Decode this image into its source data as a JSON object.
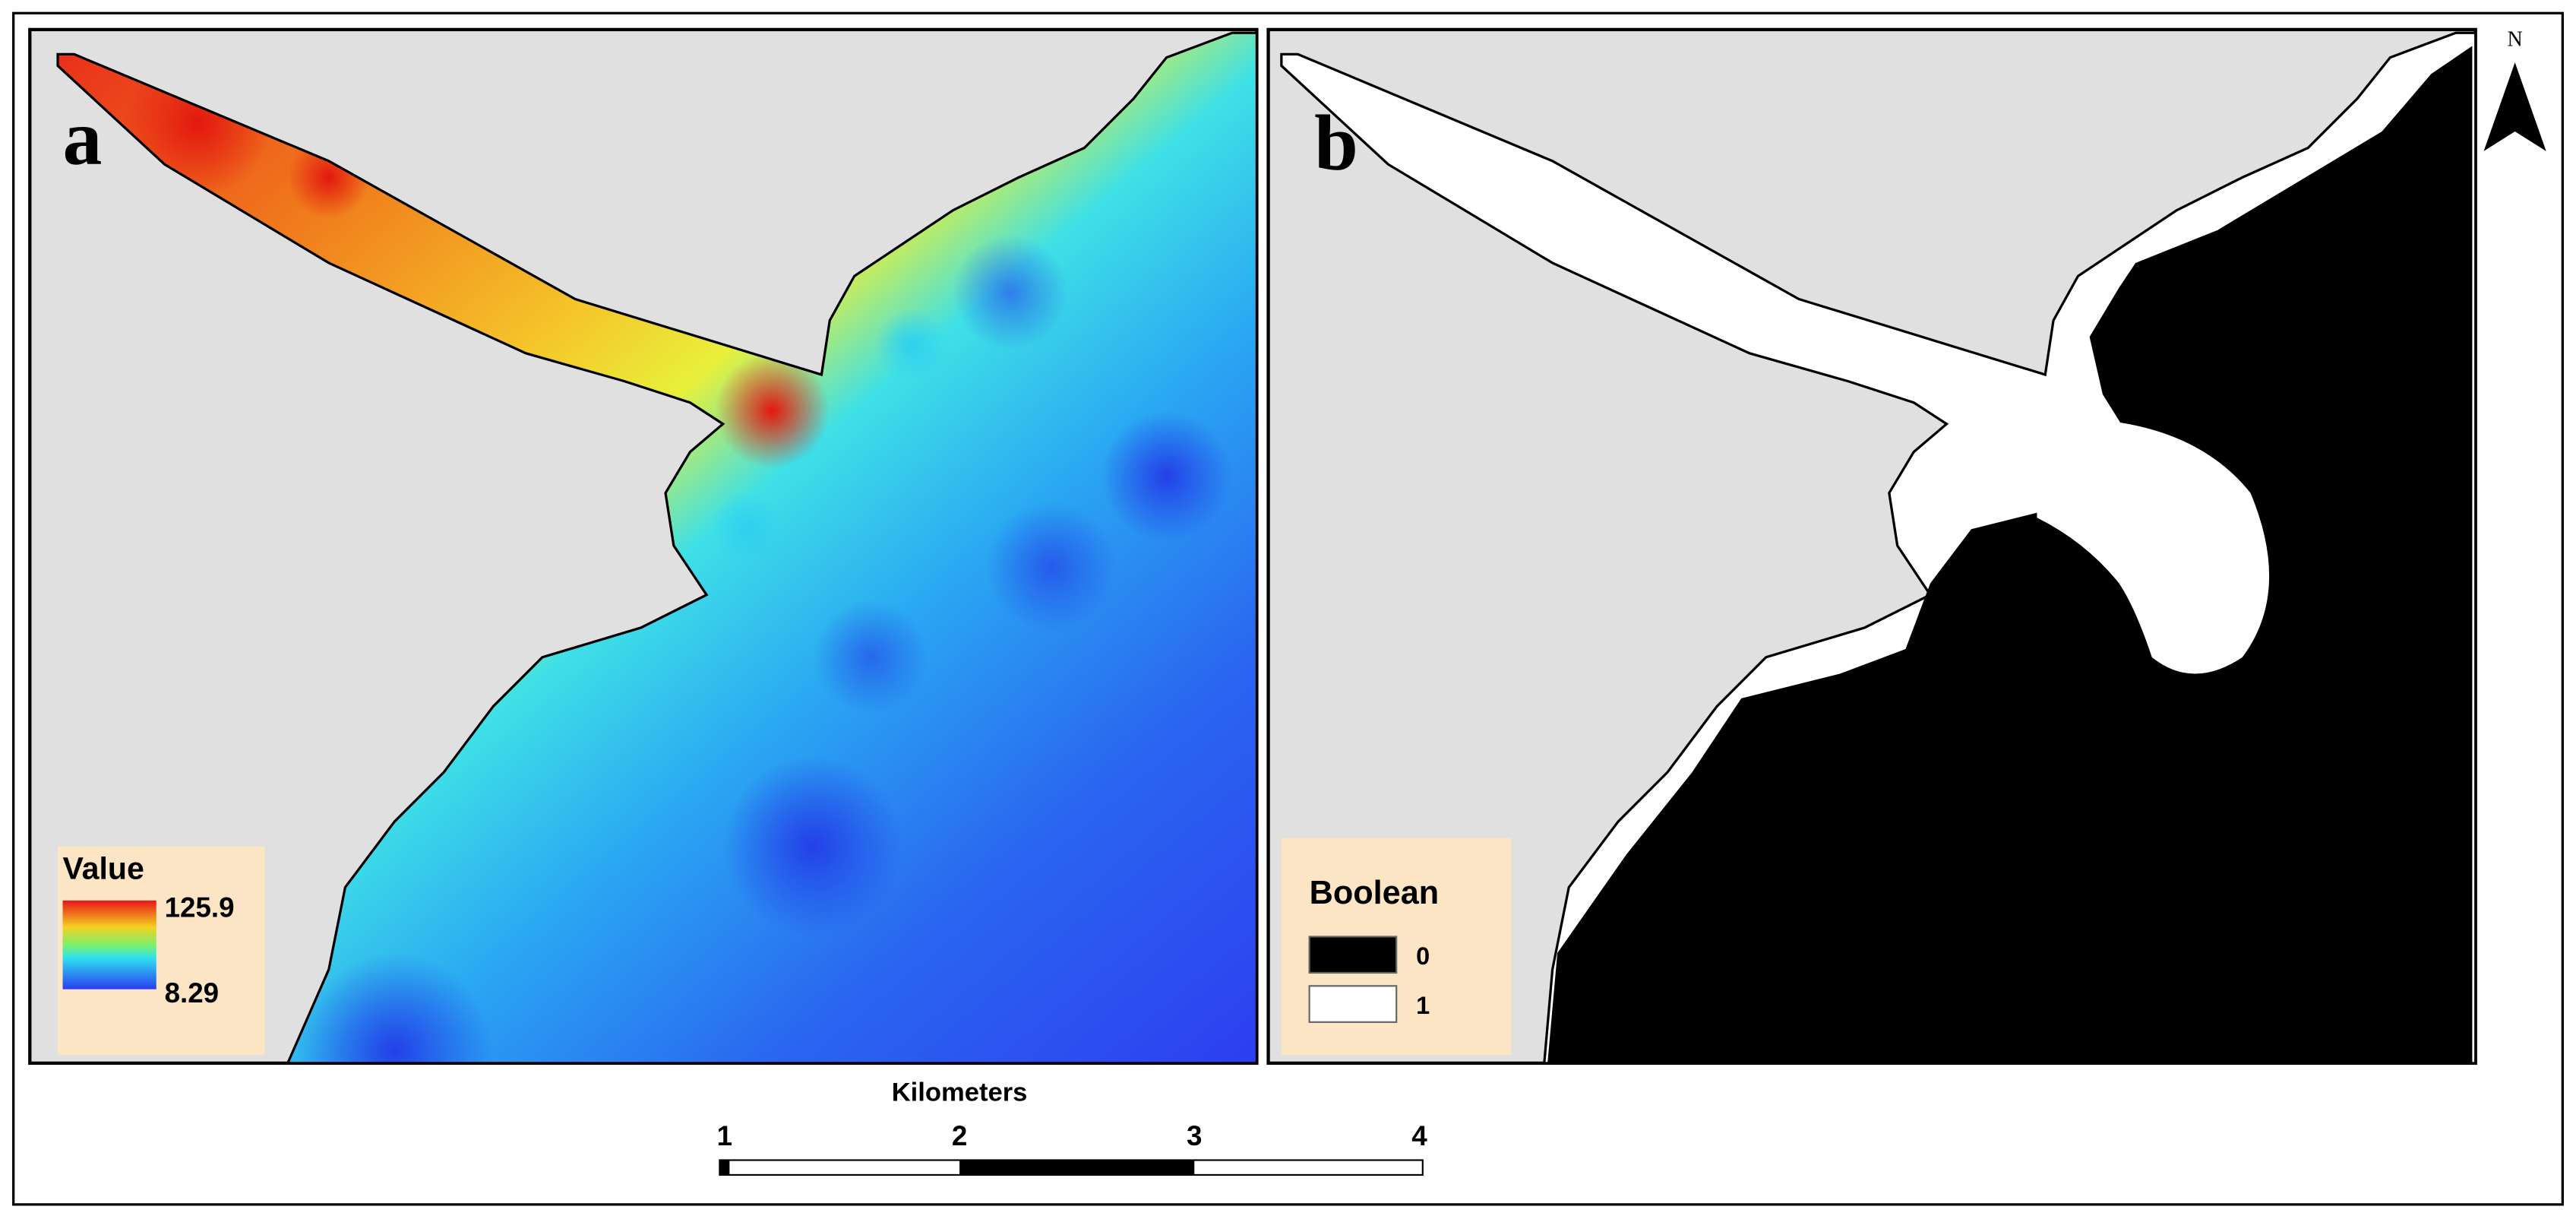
{
  "panel_a": {
    "label": "a",
    "legend": {
      "title": "Value",
      "max": "125.9",
      "min": "8.29"
    }
  },
  "panel_b": {
    "label": "b",
    "legend": {
      "title": "Boolean",
      "items": [
        "0",
        "1"
      ]
    }
  },
  "north_arrow": {
    "label": "N"
  },
  "scale_bar": {
    "title": "Kilometers",
    "ticks": [
      "1",
      "2",
      "3",
      "4"
    ]
  }
}
